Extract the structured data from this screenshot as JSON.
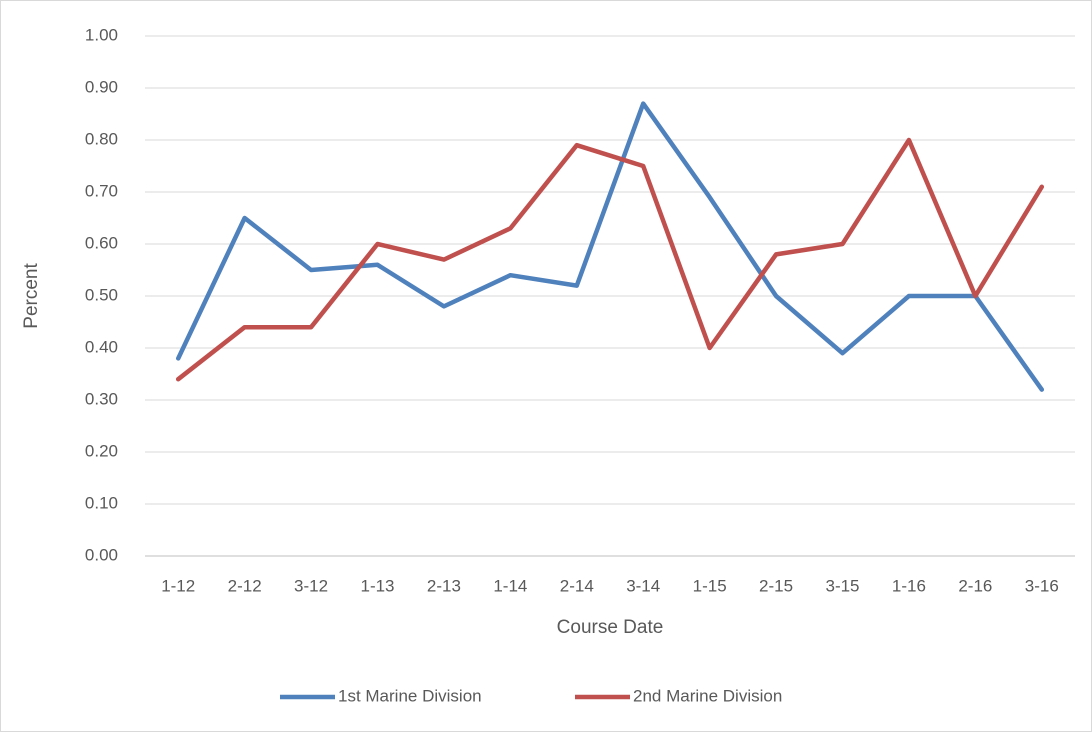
{
  "chart_data": {
    "type": "line",
    "x_label": "Course Date",
    "y_label": "Percent",
    "categories": [
      "1-12",
      "2-12",
      "3-12",
      "1-13",
      "2-13",
      "1-14",
      "2-14",
      "3-14",
      "1-15",
      "2-15",
      "3-15",
      "1-16",
      "2-16",
      "3-16"
    ],
    "series": [
      {
        "name": "1st Marine Division",
        "color": "#4f81bd",
        "values": [
          0.38,
          0.65,
          0.55,
          0.56,
          0.48,
          0.54,
          0.52,
          0.87,
          0.69,
          0.5,
          0.39,
          0.5,
          0.5,
          0.32
        ]
      },
      {
        "name": "2nd Marine Division",
        "color": "#c0504d",
        "values": [
          0.34,
          0.44,
          0.44,
          0.6,
          0.57,
          0.63,
          0.79,
          0.75,
          0.4,
          0.58,
          0.6,
          0.8,
          0.5,
          0.71
        ]
      }
    ],
    "ylim": [
      0,
      1
    ],
    "yticks": [
      {
        "value": 0,
        "label": "0.00"
      },
      {
        "value": 0.1,
        "label": "0.10"
      },
      {
        "value": 0.2,
        "label": "0.20"
      },
      {
        "value": 0.3,
        "label": "0.30"
      },
      {
        "value": 0.4,
        "label": "0.40"
      },
      {
        "value": 0.5,
        "label": "0.50"
      },
      {
        "value": 0.6,
        "label": "0.60"
      },
      {
        "value": 0.7,
        "label": "0.70"
      },
      {
        "value": 0.8,
        "label": "0.80"
      },
      {
        "value": 0.9,
        "label": "0.90"
      },
      {
        "value": 1,
        "label": "1.00"
      }
    ],
    "grid": true,
    "legend": "bottom"
  }
}
